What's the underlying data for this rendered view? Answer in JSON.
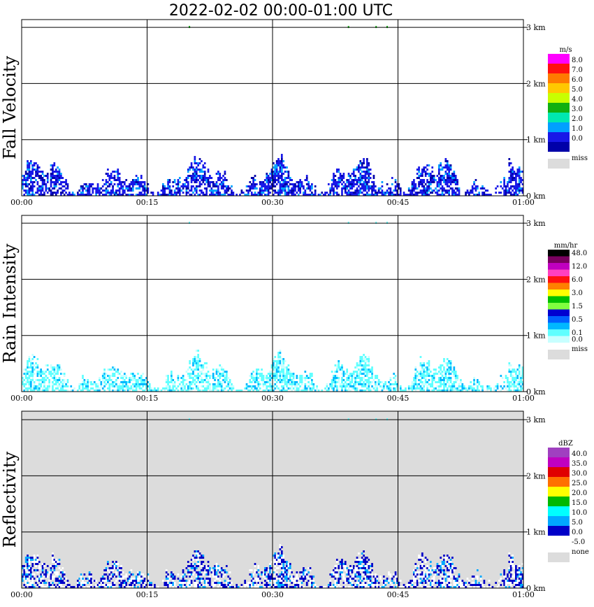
{
  "title": "2022-02-02   00:00-01:00 UTC",
  "x_ticks": [
    "00:00",
    "00:15",
    "00:30",
    "00:45",
    "01:00"
  ],
  "y_ticks": [
    "0 km",
    "1 km",
    "2 km",
    "3 km"
  ],
  "panels": [
    {
      "id": "fall",
      "ylabel": "Fall Velocity",
      "unit": "m/s",
      "bg": "#ffffff",
      "legend": [
        {
          "color": "#ff00ff",
          "label": "8.0"
        },
        {
          "color": "#ff1010",
          "label": "7.0"
        },
        {
          "color": "#ff7a00",
          "label": "6.0"
        },
        {
          "color": "#ffc800",
          "label": "5.0"
        },
        {
          "color": "#c8ff00",
          "label": "4.0"
        },
        {
          "color": "#10b010",
          "label": "3.0"
        },
        {
          "color": "#00e8b0",
          "label": "2.0"
        },
        {
          "color": "#00a0ff",
          "label": "1.0"
        },
        {
          "color": "#1818e8",
          "label": "0.0"
        },
        {
          "color": "#0000a8",
          "label": ""
        }
      ],
      "miss": {
        "color": "#dcdcdc",
        "label": "miss"
      }
    },
    {
      "id": "rain",
      "ylabel": "Rain Intensity",
      "unit": "mm/hr",
      "bg": "#ffffff",
      "legend": [
        {
          "color": "#000000",
          "label": "48.0"
        },
        {
          "color": "#7a0060",
          "label": ""
        },
        {
          "color": "#c000c0",
          "label": "12.0"
        },
        {
          "color": "#ff40c0",
          "label": ""
        },
        {
          "color": "#ff1010",
          "label": "6.0"
        },
        {
          "color": "#ff8000",
          "label": ""
        },
        {
          "color": "#ffff00",
          "label": "3.0"
        },
        {
          "color": "#00c000",
          "label": ""
        },
        {
          "color": "#80ff40",
          "label": "1.5"
        },
        {
          "color": "#0000d0",
          "label": ""
        },
        {
          "color": "#0060ff",
          "label": "0.5"
        },
        {
          "color": "#00b8ff",
          "label": ""
        },
        {
          "color": "#60ffff",
          "label": "0.1"
        },
        {
          "color": "#c8ffff",
          "label": "0.0"
        }
      ],
      "miss": {
        "color": "#dcdcdc",
        "label": "miss"
      }
    },
    {
      "id": "refl",
      "ylabel": "Reflectivity",
      "unit": "dBZ",
      "bg": "#dcdcdc",
      "legend": [
        {
          "color": "#a040c0",
          "label": "40.0"
        },
        {
          "color": "#c000c0",
          "label": "35.0"
        },
        {
          "color": "#e00000",
          "label": "30.0"
        },
        {
          "color": "#ff7000",
          "label": "25.0"
        },
        {
          "color": "#ffff00",
          "label": "20.0"
        },
        {
          "color": "#00b800",
          "label": "15.0"
        },
        {
          "color": "#00ffff",
          "label": "10.0"
        },
        {
          "color": "#00a8ff",
          "label": "5.0"
        },
        {
          "color": "#0000c8",
          "label": "0.0"
        },
        {
          "color": "#ffffff",
          "label": "-5.0"
        }
      ],
      "miss": {
        "color": "#dcdcdc",
        "label": "none"
      }
    }
  ],
  "chart_data": {
    "type": "heatmap",
    "x_range": [
      "00:00",
      "01:00"
    ],
    "y_range_km": [
      0,
      3.5
    ],
    "y_ticks_km": [
      0,
      1,
      2,
      3
    ],
    "x_ticks": [
      "00:00",
      "00:15",
      "00:30",
      "00:45",
      "01:00"
    ],
    "description_of_data": "Precipitation echoes confined below ~0.5 km through the whole hour; sparse isolated returns near 3 km around 00:20 and 00:39-00:44."
  }
}
